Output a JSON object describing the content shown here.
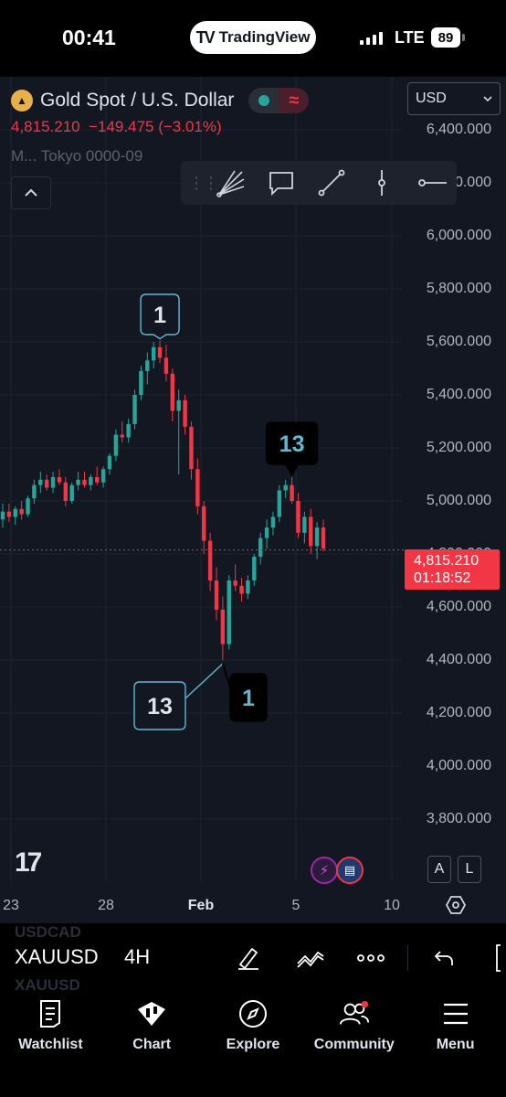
{
  "status_bar": {
    "time": "00:41",
    "app_pill": "TradingView",
    "network": "LTE",
    "battery": "89"
  },
  "header": {
    "symbol_name": "Gold Spot / U.S. Dollar",
    "last_price": "4,815.210",
    "change": "−149.475",
    "change_pct": "(−3.01%)",
    "session": "M... Tokyo 0000-09",
    "currency": "USD"
  },
  "toolbar_tools": [
    "fib-fan-icon",
    "callout-icon",
    "trend-line-icon",
    "vertical-line-icon",
    "horizontal-ray-icon"
  ],
  "current_price": {
    "price": "4,815.210",
    "countdown": "01:18:52"
  },
  "chart_data": {
    "type": "candlestick",
    "symbol": "XAUUSD",
    "interval": "4H",
    "y_axis": [
      "6,400.000",
      "6,200.000",
      "6,000.000",
      "5,800.000",
      "5,600.000",
      "5,400.000",
      "5,200.000",
      "5,000.000",
      "4,800.000",
      "4,600.000",
      "4,400.000",
      "4,200.000",
      "4,000.000",
      "3,800.000"
    ],
    "y_values": [
      6400,
      6200,
      6000,
      5800,
      5600,
      5400,
      5200,
      5000,
      4800,
      4600,
      4400,
      4200,
      4000,
      3800
    ],
    "ylim": [
      3700,
      6550
    ],
    "x_axis": [
      "23",
      "28",
      "Feb",
      "5",
      "10"
    ],
    "grid": true,
    "last_close": 4815.21,
    "candles_approx": [
      [
        4930,
        4990,
        4900,
        4960
      ],
      [
        4960,
        4990,
        4920,
        4940
      ],
      [
        4940,
        4980,
        4910,
        4970
      ],
      [
        4970,
        5000,
        4930,
        4950
      ],
      [
        4950,
        5020,
        4940,
        5010
      ],
      [
        5010,
        5080,
        4990,
        5060
      ],
      [
        5060,
        5110,
        5030,
        5080
      ],
      [
        5080,
        5100,
        5040,
        5050
      ],
      [
        5050,
        5110,
        5030,
        5090
      ],
      [
        5090,
        5120,
        5060,
        5070
      ],
      [
        5070,
        5090,
        4980,
        5000
      ],
      [
        5000,
        5070,
        4990,
        5060
      ],
      [
        5060,
        5110,
        5040,
        5080
      ],
      [
        5080,
        5110,
        5050,
        5060
      ],
      [
        5060,
        5100,
        5040,
        5090
      ],
      [
        5090,
        5130,
        5060,
        5070
      ],
      [
        5070,
        5130,
        5050,
        5120
      ],
      [
        5120,
        5180,
        5100,
        5170
      ],
      [
        5170,
        5270,
        5150,
        5250
      ],
      [
        5250,
        5300,
        5220,
        5240
      ],
      [
        5240,
        5310,
        5220,
        5290
      ],
      [
        5290,
        5420,
        5270,
        5400
      ],
      [
        5400,
        5510,
        5380,
        5490
      ],
      [
        5490,
        5560,
        5440,
        5530
      ],
      [
        5530,
        5600,
        5500,
        5580
      ],
      [
        5580,
        5605,
        5520,
        5540
      ],
      [
        5540,
        5590,
        5450,
        5480
      ],
      [
        5480,
        5500,
        5300,
        5340
      ],
      [
        5340,
        5420,
        5100,
        5380
      ],
      [
        5380,
        5400,
        5250,
        5280
      ],
      [
        5280,
        5300,
        5080,
        5120
      ],
      [
        5120,
        5160,
        4950,
        4980
      ],
      [
        4980,
        5000,
        4800,
        4850
      ],
      [
        4850,
        4880,
        4660,
        4700
      ],
      [
        4700,
        4750,
        4550,
        4590
      ],
      [
        4590,
        4640,
        4400,
        4460
      ],
      [
        4460,
        4720,
        4440,
        4700
      ],
      [
        4700,
        4760,
        4660,
        4680
      ],
      [
        4680,
        4710,
        4620,
        4650
      ],
      [
        4650,
        4720,
        4630,
        4700
      ],
      [
        4700,
        4800,
        4680,
        4790
      ],
      [
        4790,
        4880,
        4760,
        4860
      ],
      [
        4860,
        4930,
        4820,
        4900
      ],
      [
        4900,
        4960,
        4870,
        4940
      ],
      [
        4940,
        5060,
        4920,
        5040
      ],
      [
        5040,
        5080,
        5010,
        5060
      ],
      [
        5060,
        5090,
        4990,
        5000
      ],
      [
        5000,
        5030,
        4860,
        4880
      ],
      [
        4880,
        4960,
        4840,
        4940
      ],
      [
        4940,
        4970,
        4800,
        4830
      ],
      [
        4830,
        4920,
        4780,
        4900
      ],
      [
        4900,
        4930,
        4810,
        4820
      ]
    ],
    "annotations": [
      {
        "text": "1",
        "style": "outline",
        "near": "top"
      },
      {
        "text": "13",
        "style": "filled",
        "near": "right-peak"
      },
      {
        "text": "13",
        "style": "outline",
        "near": "bottom"
      },
      {
        "text": "1",
        "style": "filled",
        "near": "bottom"
      }
    ],
    "colors": {
      "up": "#26a69a",
      "down": "#f23645",
      "background": "#131722",
      "grid": "#1f2330"
    }
  },
  "chart_footer": {
    "tv_mark": "17",
    "al_a": "A",
    "al_l": "L"
  },
  "bottom_toolbar": {
    "ghost_top": "USDCAD",
    "ghost_bottom": "XAUUSD",
    "ticker": "XAUUSD",
    "interval": "4H"
  },
  "tabs": [
    {
      "label": "Watchlist",
      "icon": "watchlist-icon"
    },
    {
      "label": "Chart",
      "icon": "chart-icon"
    },
    {
      "label": "Explore",
      "icon": "compass-icon"
    },
    {
      "label": "Community",
      "icon": "community-icon"
    },
    {
      "label": "Menu",
      "icon": "menu-icon"
    }
  ]
}
